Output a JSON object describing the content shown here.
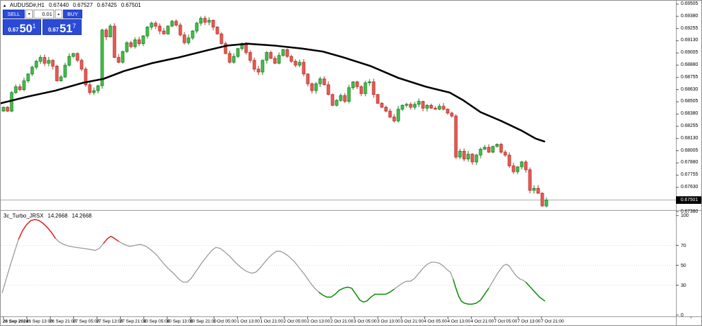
{
  "header": {
    "collapse_icon": "▴",
    "symbol": "AUDUSD#,H1",
    "open": "0.67440",
    "high": "0.67527",
    "low": "0.67425",
    "close": "0.67501"
  },
  "trade_panel": {
    "sell_label": "SELL",
    "buy_label": "BUY",
    "lot_value": "0.01",
    "spin_down_icon": "▾",
    "spin_up_icon": "▴",
    "sell_price": {
      "prefix": "0.67",
      "big": "50",
      "sup": "1"
    },
    "buy_price": {
      "prefix": "0.67",
      "big": "51",
      "sup": "7"
    },
    "accent_color": "#2b4bd7"
  },
  "price_axis": {
    "labels": [
      "0.69505",
      "0.69380",
      "0.69255",
      "0.69130",
      "0.69005",
      "0.68880",
      "0.68755",
      "0.68630",
      "0.68505",
      "0.68380",
      "0.68255",
      "0.68130",
      "0.68005",
      "0.67880",
      "0.67755",
      "0.67630",
      "0.67380"
    ],
    "current_price": "0.67501"
  },
  "indicator_pane": {
    "title": "3c_Turbo_JRSX",
    "value1": "14.2668",
    "value2": "14.2668",
    "axis_labels": [
      100,
      70,
      50,
      30,
      0
    ],
    "level_lines": [
      70,
      50,
      30
    ]
  },
  "time_axis": {
    "labels": [
      "26 Sep 2024",
      "26 Sep 13:00",
      "26 Sep 21:00",
      "27 Sep 05:00",
      "27 Sep 13:00",
      "27 Sep 21:00",
      "30 Sep 05:00",
      "30 Sep 13:00",
      "30 Sep 21:00",
      "1 Oct 05:00",
      "1 Oct 13:00",
      "1 Oct 21:00",
      "2 Oct 05:00",
      "2 Oct 13:00",
      "2 Oct 21:00",
      "3 Oct 05:00",
      "3 Oct 13:00",
      "3 Oct 21:00",
      "4 Oct 05:00",
      "4 Oct 13:00",
      "4 Oct 21:00",
      "7 Oct 05:00",
      "7 Oct 13:00",
      "7 Oct 21:00"
    ]
  },
  "chart_data": [
    {
      "type": "candlestick",
      "title": "AUDUSD# H1",
      "y_axis": {
        "top": 0.69505,
        "bottom": 0.6738,
        "step": 0.00125
      },
      "bid": 0.67501,
      "closes": [
        0.6845,
        0.6841,
        0.686,
        0.6866,
        0.6863,
        0.6872,
        0.6879,
        0.6886,
        0.6892,
        0.6896,
        0.689,
        0.6893,
        0.6887,
        0.6872,
        0.6876,
        0.6888,
        0.6897,
        0.69,
        0.6893,
        0.6884,
        0.6868,
        0.686,
        0.6862,
        0.6867,
        0.6924,
        0.6917,
        0.6928,
        0.6896,
        0.6891,
        0.6902,
        0.6911,
        0.6907,
        0.6914,
        0.691,
        0.6918,
        0.6927,
        0.6931,
        0.6928,
        0.6923,
        0.692,
        0.6928,
        0.6933,
        0.6929,
        0.6919,
        0.6911,
        0.6916,
        0.6923,
        0.6931,
        0.6936,
        0.6932,
        0.6934,
        0.6927,
        0.692,
        0.691,
        0.69,
        0.6891,
        0.6897,
        0.6905,
        0.691,
        0.6901,
        0.6893,
        0.6884,
        0.6881,
        0.6893,
        0.6901,
        0.6895,
        0.689,
        0.6898,
        0.6904,
        0.6897,
        0.6892,
        0.6888,
        0.6891,
        0.6879,
        0.6869,
        0.6862,
        0.6869,
        0.6874,
        0.6868,
        0.6858,
        0.6847,
        0.6852,
        0.6857,
        0.6851,
        0.6865,
        0.6871,
        0.6866,
        0.6859,
        0.687,
        0.6871,
        0.6858,
        0.6849,
        0.6845,
        0.6841,
        0.6835,
        0.6831,
        0.6843,
        0.6847,
        0.6848,
        0.6845,
        0.6848,
        0.6851,
        0.6844,
        0.6847,
        0.6844,
        0.6843,
        0.6846,
        0.6843,
        0.6839,
        0.6836,
        0.6794,
        0.68,
        0.6792,
        0.6797,
        0.6789,
        0.6796,
        0.6802,
        0.6804,
        0.6799,
        0.6805,
        0.6807,
        0.6799,
        0.6796,
        0.6785,
        0.6779,
        0.6784,
        0.6789,
        0.6781,
        0.676,
        0.6762,
        0.6757,
        0.6744,
        0.67501
      ],
      "last_candle": {
        "open": 0.6744,
        "high": 0.67527,
        "low": 0.67425,
        "close": 0.67501
      },
      "ma_line": {
        "name": "moving-average",
        "color": "#000000",
        "points": [
          [
            0,
            0.6849
          ],
          [
            40,
            0.6856
          ],
          [
            80,
            0.6862
          ],
          [
            120,
            0.687
          ],
          [
            150,
            0.6874
          ],
          [
            180,
            0.6882
          ],
          [
            220,
            0.689
          ],
          [
            260,
            0.6896
          ],
          [
            300,
            0.6903
          ],
          [
            330,
            0.6908
          ],
          [
            360,
            0.691
          ],
          [
            400,
            0.6908
          ],
          [
            440,
            0.6905
          ],
          [
            470,
            0.6902
          ],
          [
            500,
            0.6896
          ],
          [
            540,
            0.6887
          ],
          [
            580,
            0.6875
          ],
          [
            620,
            0.6866
          ],
          [
            655,
            0.686
          ],
          [
            675,
            0.6852
          ],
          [
            700,
            0.684
          ],
          [
            730,
            0.6831
          ],
          [
            760,
            0.6821
          ],
          [
            780,
            0.6813
          ],
          [
            793,
            0.681
          ]
        ]
      },
      "colors": {
        "up_fill": "#44c04c",
        "up_stroke": "#1d7a22",
        "down_fill": "#ea5b54",
        "down_stroke": "#b03028",
        "bid_line": "#a8a8a8"
      }
    },
    {
      "type": "line",
      "name": "3c_Turbo_JRSX",
      "ylim": [
        0,
        100
      ],
      "levels": [
        100,
        70,
        50,
        30,
        0
      ],
      "base_color": "#999999",
      "segments": [
        {
          "from": 24,
          "to": 84,
          "color": "#e02020"
        },
        {
          "from": 150,
          "to": 172,
          "color": "#e02020"
        },
        {
          "from": 462,
          "to": 574,
          "color": "#089000"
        },
        {
          "from": 658,
          "to": 717,
          "color": "#089000"
        },
        {
          "from": 766,
          "to": 796,
          "color": "#089000"
        }
      ],
      "points": [
        [
          2,
          22
        ],
        [
          8,
          36
        ],
        [
          14,
          50
        ],
        [
          20,
          63
        ],
        [
          26,
          76
        ],
        [
          32,
          85
        ],
        [
          38,
          91
        ],
        [
          44,
          95
        ],
        [
          50,
          96
        ],
        [
          56,
          95
        ],
        [
          62,
          92
        ],
        [
          68,
          88
        ],
        [
          74,
          83
        ],
        [
          80,
          77
        ],
        [
          86,
          73
        ],
        [
          92,
          71
        ],
        [
          100,
          69
        ],
        [
          110,
          68
        ],
        [
          120,
          67
        ],
        [
          130,
          66
        ],
        [
          138,
          65
        ],
        [
          144,
          67
        ],
        [
          150,
          72
        ],
        [
          156,
          77
        ],
        [
          161,
          79
        ],
        [
          166,
          77
        ],
        [
          172,
          74
        ],
        [
          180,
          71
        ],
        [
          188,
          69
        ],
        [
          196,
          70
        ],
        [
          204,
          71
        ],
        [
          212,
          69
        ],
        [
          220,
          65
        ],
        [
          228,
          60
        ],
        [
          236,
          53
        ],
        [
          244,
          47
        ],
        [
          252,
          42
        ],
        [
          260,
          36
        ],
        [
          266,
          33
        ],
        [
          272,
          33
        ],
        [
          278,
          37
        ],
        [
          286,
          45
        ],
        [
          294,
          53
        ],
        [
          302,
          60
        ],
        [
          308,
          65
        ],
        [
          314,
          68
        ],
        [
          320,
          67
        ],
        [
          326,
          64
        ],
        [
          334,
          59
        ],
        [
          342,
          53
        ],
        [
          350,
          48
        ],
        [
          358,
          44
        ],
        [
          366,
          42
        ],
        [
          372,
          43
        ],
        [
          378,
          47
        ],
        [
          384,
          52
        ],
        [
          390,
          57
        ],
        [
          396,
          61
        ],
        [
          402,
          64
        ],
        [
          408,
          64
        ],
        [
          414,
          62
        ],
        [
          420,
          59
        ],
        [
          428,
          54
        ],
        [
          436,
          47
        ],
        [
          444,
          40
        ],
        [
          452,
          32
        ],
        [
          458,
          27
        ],
        [
          464,
          23
        ],
        [
          470,
          20
        ],
        [
          476,
          18
        ],
        [
          482,
          18
        ],
        [
          488,
          21
        ],
        [
          494,
          25
        ],
        [
          500,
          27
        ],
        [
          506,
          28
        ],
        [
          512,
          27
        ],
        [
          518,
          21
        ],
        [
          524,
          15
        ],
        [
          529,
          13
        ],
        [
          534,
          14
        ],
        [
          540,
          18
        ],
        [
          546,
          21
        ],
        [
          554,
          21
        ],
        [
          562,
          21
        ],
        [
          568,
          23
        ],
        [
          574,
          26
        ],
        [
          580,
          29
        ],
        [
          586,
          32
        ],
        [
          592,
          34
        ],
        [
          598,
          34
        ],
        [
          604,
          37
        ],
        [
          610,
          42
        ],
        [
          616,
          47
        ],
        [
          622,
          51
        ],
        [
          628,
          53
        ],
        [
          634,
          53
        ],
        [
          640,
          52
        ],
        [
          646,
          49
        ],
        [
          652,
          45
        ],
        [
          656,
          43
        ],
        [
          660,
          36
        ],
        [
          664,
          27
        ],
        [
          668,
          19
        ],
        [
          672,
          14
        ],
        [
          676,
          12
        ],
        [
          682,
          11
        ],
        [
          688,
          11
        ],
        [
          694,
          12
        ],
        [
          700,
          15
        ],
        [
          706,
          21
        ],
        [
          712,
          27
        ],
        [
          718,
          34
        ],
        [
          724,
          41
        ],
        [
          730,
          47
        ],
        [
          734,
          50
        ],
        [
          738,
          51
        ],
        [
          742,
          49
        ],
        [
          746,
          45
        ],
        [
          750,
          41
        ],
        [
          754,
          38
        ],
        [
          758,
          36
        ],
        [
          762,
          35
        ],
        [
          766,
          33
        ],
        [
          770,
          30
        ],
        [
          774,
          27
        ],
        [
          778,
          24
        ],
        [
          782,
          21
        ],
        [
          786,
          18
        ],
        [
          790,
          16
        ],
        [
          794,
          14
        ]
      ]
    }
  ]
}
